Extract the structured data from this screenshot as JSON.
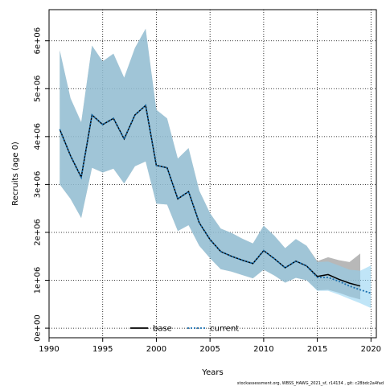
{
  "chart_data": {
    "type": "line",
    "xlabel": "Years",
    "ylabel": "Recruits (age 0)",
    "xlim": [
      1990,
      2020.5
    ],
    "ylim": [
      -200000,
      6650000
    ],
    "x_ticks": [
      1990,
      1995,
      2000,
      2005,
      2010,
      2015,
      2020
    ],
    "y_ticks": [
      0,
      1000000,
      2000000,
      3000000,
      4000000,
      5000000,
      6000000
    ],
    "y_tick_labels": [
      "0e+00",
      "1e+06",
      "2e+06",
      "3e+06",
      "4e+06",
      "5e+06",
      "6e+06"
    ],
    "grid": true,
    "legend_position": "bottom-center",
    "footnote": "stockassessment.org, WBSS_HAWG_2021_sf, r14134 , git: c28bdc2a4fad",
    "series": [
      {
        "name": "base",
        "color": "#000000",
        "style": "solid",
        "band_color": "#9a9a9a",
        "x": [
          1991,
          1992,
          1993,
          1994,
          1995,
          1996,
          1997,
          1998,
          1999,
          2000,
          2001,
          2002,
          2003,
          2004,
          2005,
          2006,
          2007,
          2008,
          2009,
          2010,
          2011,
          2012,
          2013,
          2014,
          2015,
          2016,
          2017,
          2018,
          2019
        ],
        "values": [
          4150000,
          3600000,
          3150000,
          4450000,
          4250000,
          4380000,
          3950000,
          4450000,
          4650000,
          3400000,
          3350000,
          2700000,
          2850000,
          2200000,
          1850000,
          1600000,
          1500000,
          1420000,
          1350000,
          1620000,
          1450000,
          1260000,
          1400000,
          1300000,
          1080000,
          1120000,
          1020000,
          940000,
          880000
        ],
        "lower": [
          3000000,
          2700000,
          2300000,
          3350000,
          3250000,
          3330000,
          3020000,
          3380000,
          3480000,
          2600000,
          2580000,
          2030000,
          2150000,
          1720000,
          1460000,
          1230000,
          1180000,
          1110000,
          1040000,
          1220000,
          1100000,
          950000,
          1050000,
          1000000,
          790000,
          800000,
          740000,
          660000,
          600000
        ],
        "upper": [
          5800000,
          4800000,
          4300000,
          5900000,
          5570000,
          5730000,
          5230000,
          5850000,
          6250000,
          4560000,
          4380000,
          3540000,
          3760000,
          2870000,
          2400000,
          2080000,
          1990000,
          1870000,
          1770000,
          2140000,
          1930000,
          1670000,
          1860000,
          1720000,
          1400000,
          1480000,
          1420000,
          1380000,
          1560000
        ]
      },
      {
        "name": "current",
        "color": "#1a6fae",
        "style": "dotted",
        "band_color": "#8cd0f0",
        "x": [
          1991,
          1992,
          1993,
          1994,
          1995,
          1996,
          1997,
          1998,
          1999,
          2000,
          2001,
          2002,
          2003,
          2004,
          2005,
          2006,
          2007,
          2008,
          2009,
          2010,
          2011,
          2012,
          2013,
          2014,
          2015,
          2016,
          2017,
          2018,
          2019,
          2020
        ],
        "values": [
          4150000,
          3600000,
          3150000,
          4450000,
          4250000,
          4380000,
          3950000,
          4450000,
          4650000,
          3400000,
          3350000,
          2700000,
          2850000,
          2200000,
          1850000,
          1600000,
          1500000,
          1420000,
          1350000,
          1620000,
          1450000,
          1260000,
          1400000,
          1300000,
          1060000,
          1060000,
          980000,
          880000,
          800000,
          730000
        ],
        "lower": [
          3000000,
          2700000,
          2300000,
          3350000,
          3250000,
          3330000,
          3020000,
          3380000,
          3480000,
          2600000,
          2580000,
          2030000,
          2150000,
          1720000,
          1460000,
          1230000,
          1180000,
          1110000,
          1040000,
          1220000,
          1100000,
          950000,
          1050000,
          1000000,
          780000,
          780000,
          700000,
          610000,
          520000,
          420000
        ],
        "upper": [
          5800000,
          4800000,
          4300000,
          5900000,
          5570000,
          5730000,
          5230000,
          5850000,
          6250000,
          4560000,
          4380000,
          3540000,
          3760000,
          2870000,
          2400000,
          2080000,
          1990000,
          1870000,
          1770000,
          2140000,
          1930000,
          1670000,
          1860000,
          1720000,
          1380000,
          1390000,
          1310000,
          1220000,
          1200000,
          1310000
        ]
      }
    ]
  }
}
